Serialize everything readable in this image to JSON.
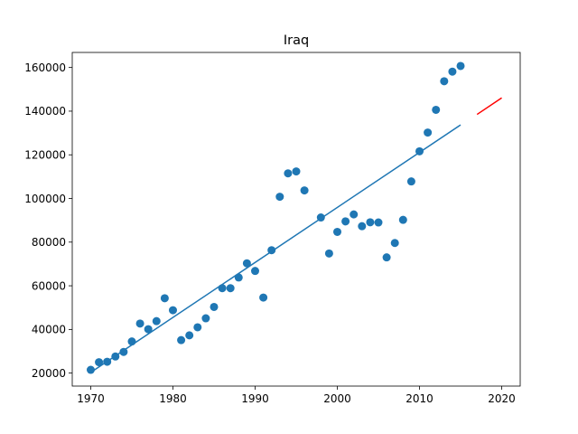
{
  "chart_data": {
    "type": "scatter",
    "title": "Iraq",
    "xlabel": "",
    "ylabel": "",
    "xlim": [
      1967.75,
      2022.25
    ],
    "ylim": [
      14050,
      166900
    ],
    "x_ticks": [
      1970,
      1980,
      1990,
      2000,
      2010,
      2020
    ],
    "x_tick_labels": [
      "1970",
      "1980",
      "1990",
      "2000",
      "2010",
      "2020"
    ],
    "y_ticks": [
      20000,
      40000,
      60000,
      80000,
      100000,
      120000,
      140000,
      160000
    ],
    "y_tick_labels": [
      "20000",
      "40000",
      "60000",
      "80000",
      "100000",
      "120000",
      "140000",
      "160000"
    ],
    "grid": false,
    "colors": {
      "points": "#1f77b4",
      "fit": "#1f77b4",
      "forecast": "#ff0000"
    },
    "points": {
      "x": [
        1970,
        1971,
        1972,
        1973,
        1974,
        1975,
        1976,
        1977,
        1978,
        1979,
        1980,
        1981,
        1982,
        1983,
        1984,
        1985,
        1986,
        1987,
        1988,
        1989,
        1990,
        1991,
        1992,
        1993,
        1994,
        1995,
        1996,
        1998,
        1999,
        2000,
        2001,
        2002,
        2003,
        2004,
        2005,
        2006,
        2007,
        2008,
        2009,
        2010,
        2011,
        2012,
        2013,
        2014,
        2015
      ],
      "y": [
        21500,
        25000,
        25200,
        27600,
        29700,
        34500,
        42700,
        40100,
        43800,
        54300,
        48800,
        35100,
        37300,
        41000,
        45100,
        50300,
        58900,
        58900,
        63800,
        70300,
        66800,
        54600,
        76300,
        100800,
        111500,
        112400,
        103700,
        91300,
        74800,
        84700,
        89500,
        92700,
        87300,
        89100,
        89000,
        73000,
        79600,
        90200,
        107800,
        121600,
        130200,
        140600,
        153700,
        158100,
        160700
      ]
    },
    "series": [
      {
        "type": "line",
        "x": [
          1970,
          2015
        ],
        "y": [
          20300,
          133700
        ]
      },
      {
        "type": "line",
        "x": [
          2017,
          2020
        ],
        "y": [
          138500,
          146100
        ]
      }
    ]
  }
}
